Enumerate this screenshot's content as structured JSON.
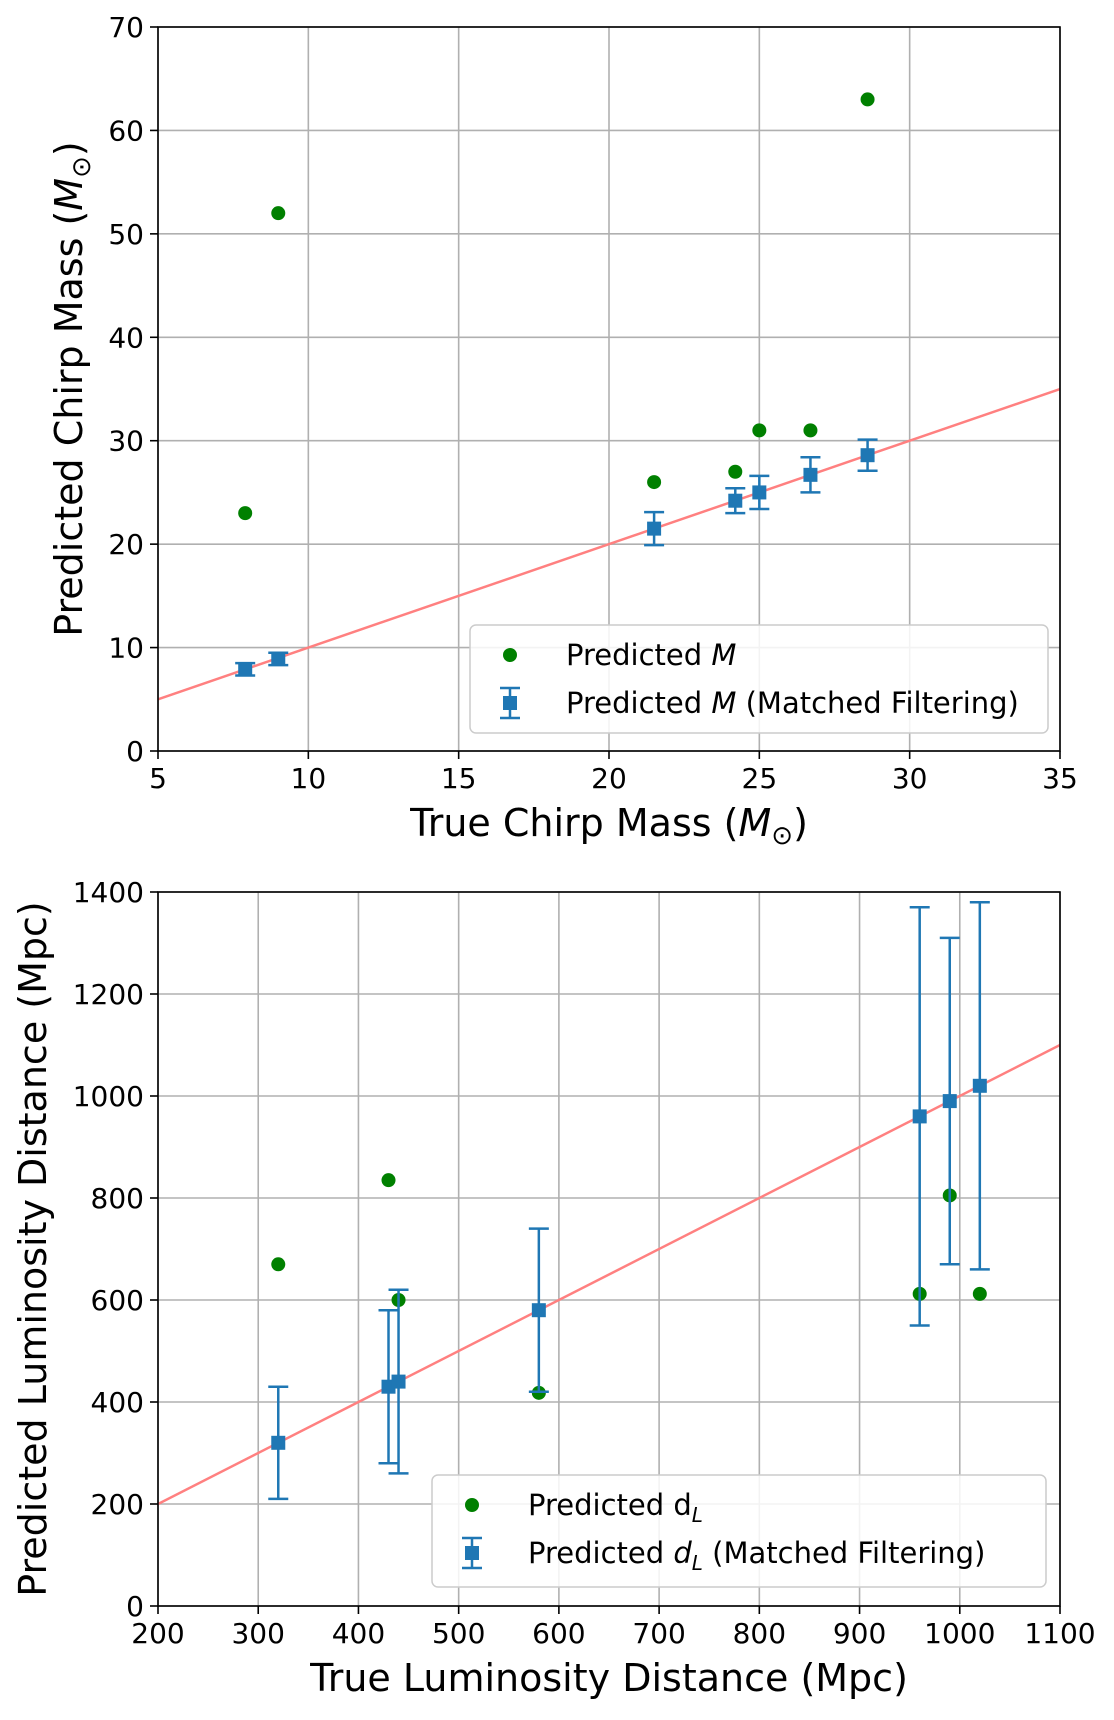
{
  "chart_data": [
    {
      "type": "scatter",
      "title": "",
      "xlabel": "True Chirp Mass (",
      "xlabel_unit": "M",
      "xlabel_sub": "⊙",
      "xlabel_close": ")",
      "ylabel": "Predicted Chirp Mass (",
      "ylabel_unit": "M",
      "ylabel_sub": "⊙",
      "ylabel_close": ")",
      "xlim": [
        5,
        35
      ],
      "ylim": [
        0,
        70
      ],
      "xticks": [
        5,
        10,
        15,
        20,
        25,
        30,
        35
      ],
      "yticks": [
        0,
        10,
        20,
        30,
        40,
        50,
        60,
        70
      ],
      "grid": true,
      "legend_position": "lower right",
      "reference_line": {
        "x": [
          5,
          35
        ],
        "y": [
          5,
          35
        ],
        "color": "#ff8080"
      },
      "series": [
        {
          "name": "Predicted ",
          "name_math": "M",
          "name_suffix": "",
          "marker": "circle",
          "color": "#008000",
          "x": [
            7.9,
            9.0,
            21.5,
            24.2,
            25.0,
            26.7,
            28.6
          ],
          "y": [
            23,
            52,
            26,
            27,
            31,
            31,
            63
          ]
        },
        {
          "name": "Predicted ",
          "name_math": "M",
          "name_suffix": " (Matched Filtering)",
          "marker": "square",
          "color": "#1f77b4",
          "x": [
            7.9,
            9.0,
            21.5,
            24.2,
            25.0,
            26.7,
            28.6
          ],
          "y": [
            7.9,
            8.9,
            21.5,
            24.2,
            25.0,
            26.7,
            28.6
          ],
          "yerr": [
            0.6,
            0.6,
            1.6,
            1.2,
            1.6,
            1.7,
            1.5
          ]
        }
      ]
    },
    {
      "type": "scatter",
      "title": "",
      "xlabel": "True Luminosity Distance (Mpc)",
      "ylabel": "Predicted Luminosity Distance (Mpc)",
      "xlim": [
        200,
        1100
      ],
      "ylim": [
        0,
        1400
      ],
      "xticks": [
        200,
        300,
        400,
        500,
        600,
        700,
        800,
        900,
        1000,
        1100
      ],
      "yticks": [
        0,
        200,
        400,
        600,
        800,
        1000,
        1200,
        1400
      ],
      "grid": true,
      "legend_position": "lower right",
      "reference_line": {
        "x": [
          200,
          1100
        ],
        "y": [
          200,
          1100
        ],
        "color": "#ff8080"
      },
      "series": [
        {
          "name": "Predicted d",
          "name_sub": "L",
          "name_suffix": "",
          "marker": "circle",
          "color": "#008000",
          "x": [
            320,
            430,
            440,
            580,
            960,
            990,
            1020
          ],
          "y": [
            670,
            835,
            600,
            418,
            612,
            805,
            612
          ]
        },
        {
          "name": "Predicted ",
          "name_math": "d",
          "name_sub": "L",
          "name_suffix": " (Matched Filtering)",
          "marker": "square",
          "color": "#1f77b4",
          "x": [
            320,
            430,
            440,
            580,
            960,
            990,
            1020
          ],
          "y": [
            320,
            430,
            440,
            580,
            960,
            990,
            1020
          ],
          "yerr_low": [
            110,
            150,
            180,
            160,
            410,
            320,
            360
          ],
          "yerr_high": [
            110,
            150,
            180,
            160,
            410,
            320,
            360
          ]
        }
      ]
    }
  ]
}
